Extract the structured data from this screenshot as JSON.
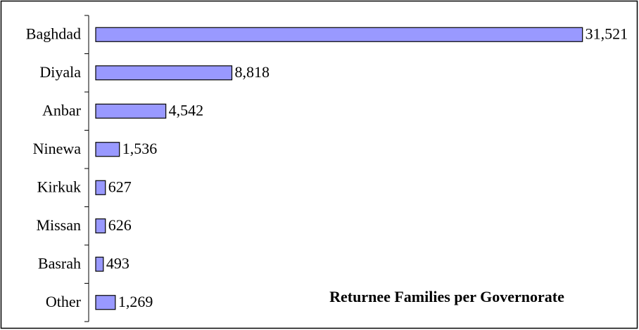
{
  "chart_data": {
    "type": "bar",
    "orientation": "horizontal",
    "title": "Returnee Families per Governorate",
    "categories": [
      "Baghdad",
      "Diyala",
      "Anbar",
      "Ninewa",
      "Kirkuk",
      "Missan",
      "Basrah",
      "Other"
    ],
    "values": [
      31521,
      8818,
      4542,
      1536,
      627,
      626,
      493,
      1269
    ],
    "value_labels": [
      "31,521",
      "8,818",
      "4,542",
      "1,536",
      "627",
      "626",
      "493",
      "1,269"
    ],
    "color": "#9999ff",
    "xlim": [
      0,
      35000
    ]
  }
}
